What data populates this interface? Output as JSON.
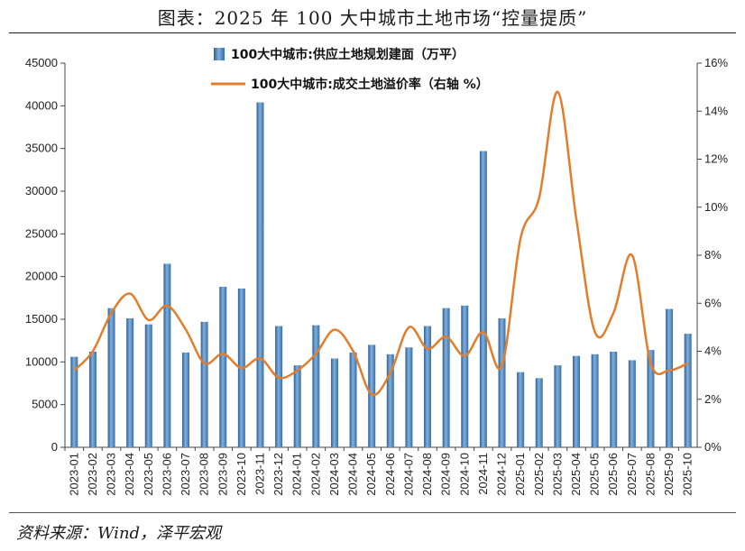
{
  "title": "图表：2025 年 100 大中城市土地市场“控量提质”",
  "source": "资料来源：Wind，泽平宏观",
  "chart_data": {
    "type": "bar+line",
    "categories": [
      "2023-01",
      "2023-02",
      "2023-03",
      "2023-04",
      "2023-05",
      "2023-06",
      "2023-07",
      "2023-08",
      "2023-09",
      "2023-10",
      "2023-11",
      "2023-12",
      "2024-01",
      "2024-02",
      "2024-03",
      "2024-04",
      "2024-05",
      "2024-06",
      "2024-07",
      "2024-08",
      "2024-09",
      "2024-10",
      "2024-11",
      "2024-12",
      "2025-01",
      "2025-02",
      "2025-03",
      "2025-04",
      "2025-05",
      "2025-06",
      "2025-07",
      "2025-08",
      "2025-09",
      "2025-10"
    ],
    "series": [
      {
        "name": "100大中城市:供应土地规划建面（万平）",
        "type": "bar",
        "axis": "left",
        "color": "#4f81bd",
        "values": [
          10600,
          11200,
          16300,
          15100,
          14400,
          21500,
          11100,
          14700,
          18800,
          18600,
          40400,
          14200,
          9600,
          14300,
          10400,
          11100,
          12000,
          10900,
          11700,
          14200,
          16300,
          16600,
          34700,
          15100,
          8800,
          8100,
          9600,
          10700,
          10900,
          11200,
          10200,
          11400,
          16200,
          13300
        ]
      },
      {
        "name": "100大中城市:成交土地溢价率（右轴 %）",
        "type": "line",
        "axis": "right",
        "color": "#e27d2c",
        "values": [
          3.2,
          4.0,
          5.6,
          6.4,
          5.3,
          5.9,
          4.9,
          3.5,
          3.9,
          3.3,
          3.7,
          2.9,
          3.2,
          3.9,
          4.9,
          4.0,
          2.2,
          3.1,
          5.0,
          4.1,
          4.6,
          3.8,
          4.8,
          3.4,
          8.7,
          10.4,
          14.8,
          9.5,
          4.8,
          5.6,
          8.0,
          3.5,
          3.2,
          3.5
        ]
      }
    ],
    "y_left": {
      "min": 0,
      "max": 45000,
      "ticks": [
        "0",
        "5000",
        "10000",
        "15000",
        "20000",
        "25000",
        "30000",
        "35000",
        "40000",
        "45000"
      ]
    },
    "y_right": {
      "min": 0,
      "max": 16,
      "ticks": [
        "0%",
        "2%",
        "4%",
        "6%",
        "8%",
        "10%",
        "12%",
        "14%",
        "16%"
      ]
    },
    "legend_position": "top-center",
    "grid": false
  }
}
